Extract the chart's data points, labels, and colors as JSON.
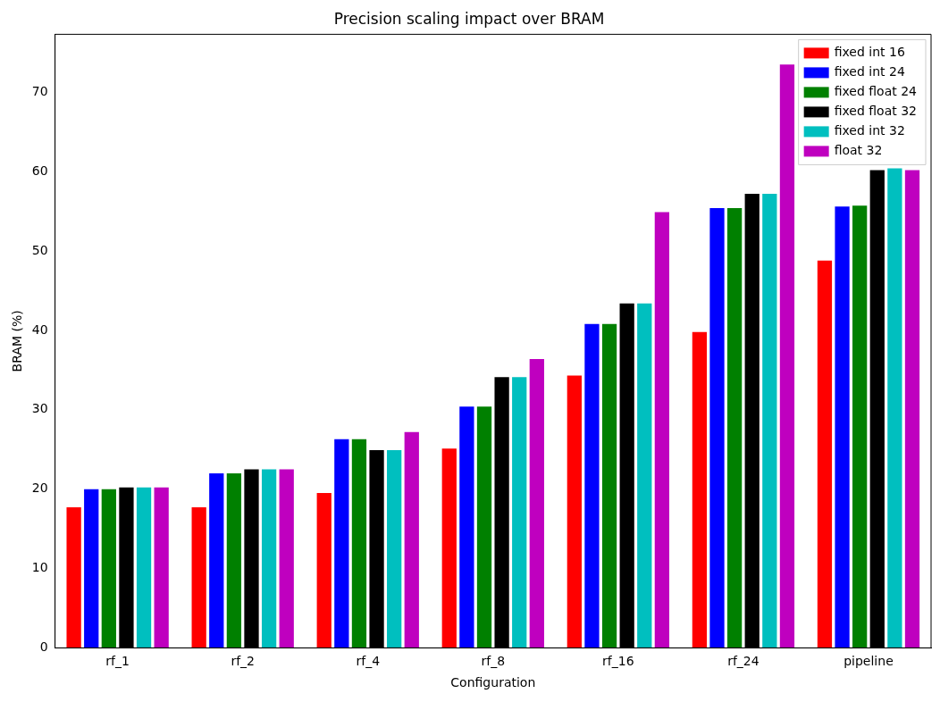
{
  "chart_data": {
    "type": "bar",
    "title": "Precision scaling impact over BRAM",
    "xlabel": "Configuration",
    "ylabel": "BRAM (%)",
    "categories": [
      "rf_1",
      "rf_2",
      "rf_4",
      "rf_8",
      "rf_16",
      "rf_24",
      "pipeline"
    ],
    "series": [
      {
        "name": "fixed int 16",
        "color": "#ff0000",
        "values": [
          17.7,
          17.7,
          19.5,
          25.1,
          34.3,
          39.8,
          48.8
        ]
      },
      {
        "name": "fixed int 24",
        "color": "#0000ff",
        "values": [
          20.0,
          22.0,
          26.3,
          30.4,
          40.8,
          55.4,
          55.6
        ]
      },
      {
        "name": "fixed float 24",
        "color": "#008000",
        "values": [
          20.0,
          22.0,
          26.3,
          30.4,
          40.8,
          55.4,
          55.7
        ]
      },
      {
        "name": "fixed float 32",
        "color": "#000000",
        "values": [
          20.2,
          22.5,
          24.9,
          34.1,
          43.4,
          57.2,
          60.2
        ]
      },
      {
        "name": "fixed int 32",
        "color": "#00bfbf",
        "values": [
          20.2,
          22.5,
          24.9,
          34.1,
          43.4,
          57.2,
          60.4
        ]
      },
      {
        "name": "float 32",
        "color": "#bf00bf",
        "values": [
          20.2,
          22.5,
          27.2,
          36.4,
          54.9,
          73.5,
          60.2
        ]
      }
    ],
    "ylim": [
      0,
      77.3
    ],
    "yticks": [
      0,
      10,
      20,
      30,
      40,
      50,
      60,
      70
    ],
    "legend": "top right",
    "grid": false
  }
}
